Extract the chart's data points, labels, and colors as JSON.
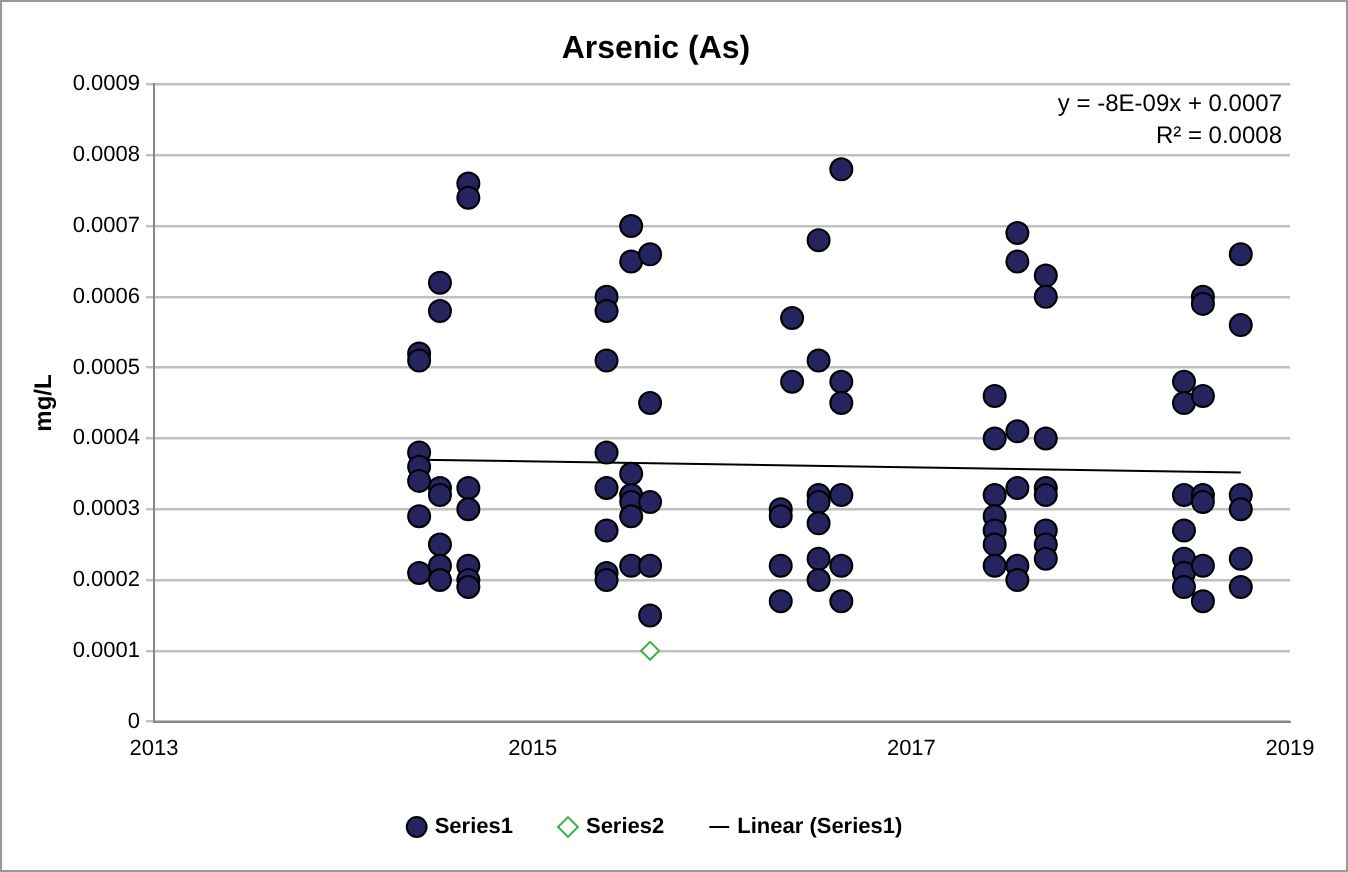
{
  "chart_data": {
    "type": "scatter",
    "title": "Arsenic (As)",
    "ylabel": "mg/L",
    "xlim": [
      2013,
      2019
    ],
    "xticks": [
      2013,
      2015,
      2017,
      2019
    ],
    "ylim": [
      0,
      0.0009
    ],
    "yticks": [
      0,
      0.0001,
      0.0002,
      0.0003,
      0.0004,
      0.0005,
      0.0006,
      0.0007,
      0.0008,
      0.0009
    ],
    "grid": "y",
    "legend": "bottom",
    "annotations": [
      "y = -8E-09x + 0.0007",
      "R² = 0.0008"
    ],
    "series": [
      {
        "name": "Series1",
        "color": "#25245e",
        "marker": "circle",
        "x": [
          2014.4,
          2014.4,
          2014.4,
          2014.4,
          2014.4,
          2014.4,
          2014.4,
          2014.51,
          2014.51,
          2014.51,
          2014.51,
          2014.51,
          2014.51,
          2014.51,
          2014.66,
          2014.66,
          2014.66,
          2014.66,
          2014.66,
          2014.66,
          2014.66,
          2015.39,
          2015.39,
          2015.39,
          2015.39,
          2015.39,
          2015.39,
          2015.39,
          2015.39,
          2015.52,
          2015.52,
          2015.52,
          2015.52,
          2015.52,
          2015.52,
          2015.52,
          2015.62,
          2015.62,
          2015.62,
          2015.62,
          2015.62,
          2016.31,
          2016.31,
          2016.31,
          2016.31,
          2016.37,
          2016.37,
          2016.51,
          2016.51,
          2016.51,
          2016.51,
          2016.51,
          2016.51,
          2016.51,
          2016.63,
          2016.63,
          2016.63,
          2016.63,
          2016.63,
          2016.63,
          2017.44,
          2017.44,
          2017.44,
          2017.44,
          2017.44,
          2017.44,
          2017.44,
          2017.56,
          2017.56,
          2017.56,
          2017.56,
          2017.56,
          2017.56,
          2017.71,
          2017.71,
          2017.71,
          2017.71,
          2017.71,
          2017.71,
          2017.71,
          2017.71,
          2018.44,
          2018.44,
          2018.44,
          2018.44,
          2018.44,
          2018.44,
          2018.44,
          2018.54,
          2018.54,
          2018.54,
          2018.54,
          2018.54,
          2018.54,
          2018.54,
          2018.74,
          2018.74,
          2018.74,
          2018.74,
          2018.74,
          2018.74
        ],
        "values": [
          0.00052,
          0.00051,
          0.00038,
          0.00036,
          0.00034,
          0.00029,
          0.00021,
          0.00062,
          0.00058,
          0.00033,
          0.00032,
          0.00025,
          0.00022,
          0.0002,
          0.00076,
          0.00074,
          0.00033,
          0.0003,
          0.00022,
          0.0002,
          0.00019,
          0.0006,
          0.00058,
          0.00051,
          0.00038,
          0.00033,
          0.00027,
          0.00021,
          0.0002,
          0.0007,
          0.00065,
          0.00035,
          0.00032,
          0.00031,
          0.00029,
          0.00022,
          0.00066,
          0.00045,
          0.00031,
          0.00022,
          0.00015,
          0.0003,
          0.00029,
          0.00022,
          0.00017,
          0.00057,
          0.00048,
          0.00068,
          0.00051,
          0.00032,
          0.00031,
          0.00028,
          0.00023,
          0.0002,
          0.00078,
          0.00048,
          0.00045,
          0.00032,
          0.00022,
          0.00017,
          0.00046,
          0.0004,
          0.00032,
          0.00029,
          0.00027,
          0.00025,
          0.00022,
          0.00069,
          0.00065,
          0.00041,
          0.00033,
          0.00022,
          0.0002,
          0.00063,
          0.0006,
          0.0004,
          0.00033,
          0.00032,
          0.00027,
          0.00025,
          0.00023,
          0.00048,
          0.00045,
          0.00032,
          0.00027,
          0.00023,
          0.00021,
          0.00019,
          0.0006,
          0.00059,
          0.00046,
          0.00032,
          0.00031,
          0.00022,
          0.00017,
          0.00066,
          0.00056,
          0.00032,
          0.0003,
          0.00023,
          0.00019
        ]
      },
      {
        "name": "Series2",
        "color": "#3cb043",
        "marker": "diamond",
        "x": [
          2015.62
        ],
        "values": [
          0.0001
        ]
      },
      {
        "name": "Linear (Series1)",
        "type": "line",
        "color": "#000000",
        "marker": "none",
        "x": [
          2014.4,
          2018.74
        ],
        "values": [
          0.00037,
          0.000352
        ]
      }
    ]
  }
}
